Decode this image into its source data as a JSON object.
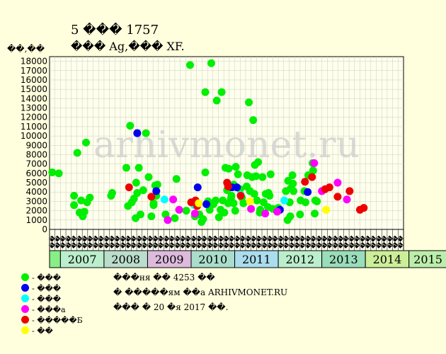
{
  "header": {
    "title": "5 ��� 1757",
    "subtitle": "��� Ag,��� XF.",
    "unit": "��,��"
  },
  "watermark": "arhivmonet.ru",
  "legend": [
    {
      "label": "- ���",
      "color": "#00ee00"
    },
    {
      "label": "- ���",
      "color": "#0000ee"
    },
    {
      "label": "- ���",
      "color": "#00ffff"
    },
    {
      "label": "- ���a",
      "color": "#ff00ff"
    },
    {
      "label": "- �����Б",
      "color": "#ee0000"
    },
    {
      "label": "- ��",
      "color": "#ffff00"
    }
  ],
  "info": [
    "���ня �� 4253 ��",
    "� �����ям ��a ARHIVMONET.RU",
    "��� � 20 �я 2017 ��."
  ],
  "chart_data": {
    "type": "scatter",
    "yticks": [
      0,
      1000,
      2000,
      3000,
      4000,
      5000,
      6000,
      7000,
      8000,
      9000,
      10000,
      11000,
      12000,
      13000,
      14000,
      15000,
      16000,
      17000,
      18000
    ],
    "ylim": [
      0,
      18500
    ],
    "grid": true,
    "periods": [
      "��",
      "��",
      "��",
      "��",
      "��",
      "��",
      "��",
      "��",
      "��",
      "��",
      "��",
      "��",
      "��",
      "��",
      "��",
      "��",
      "��",
      "��",
      "��",
      "��",
      "��",
      "��",
      "��",
      "��",
      "��",
      "��",
      "��",
      "��",
      "��",
      "��",
      "��",
      "��",
      "��",
      "��",
      "��",
      "��",
      "��",
      "��",
      "��",
      "��",
      "��",
      "��",
      "��",
      "��",
      "��",
      "��",
      "��",
      "��",
      "��",
      "��",
      "��",
      "��",
      "��",
      "��",
      "��",
      "��",
      "��",
      "��",
      "��",
      "��",
      "��",
      "��",
      "��",
      "��",
      "��"
    ],
    "years": [
      {
        "label": "",
        "span": 2,
        "color": "#88ee88"
      },
      {
        "label": "2007",
        "span": 8,
        "color": "#bbeecc"
      },
      {
        "label": "2008",
        "span": 8,
        "color": "#bbddcc"
      },
      {
        "label": "2009",
        "span": 8,
        "color": "#ddbbdd"
      },
      {
        "label": "2010",
        "span": 8,
        "color": "#aaddcc"
      },
      {
        "label": "2011",
        "span": 8,
        "color": "#aaddee"
      },
      {
        "label": "2012",
        "span": 8,
        "color": "#bbeecc"
      },
      {
        "label": "2013",
        "span": 8,
        "color": "#99ddbb"
      },
      {
        "label": "2014",
        "span": 8,
        "color": "#ccee99"
      },
      {
        "label": "2015",
        "span": 7,
        "color": "#bbeeaa"
      }
    ],
    "series": [
      {
        "color": "#00ee00",
        "points": [
          [
            0,
            6100
          ],
          [
            1.2,
            6000
          ],
          [
            4,
            3600
          ],
          [
            4,
            2600
          ],
          [
            4.6,
            8200
          ],
          [
            5,
            1800
          ],
          [
            5.3,
            3100
          ],
          [
            5.6,
            1400
          ],
          [
            5.9,
            1900
          ],
          [
            6.2,
            9300
          ],
          [
            6.4,
            2900
          ],
          [
            6.9,
            3400
          ],
          [
            10.8,
            3600
          ],
          [
            11,
            3900
          ],
          [
            13.6,
            6600
          ],
          [
            13.9,
            2500
          ],
          [
            14.3,
            11100
          ],
          [
            14.6,
            2900
          ],
          [
            15,
            3300
          ],
          [
            15.3,
            1200
          ],
          [
            15.4,
            5000
          ],
          [
            15.6,
            3900
          ],
          [
            15.9,
            6600
          ],
          [
            16.2,
            1600
          ],
          [
            16.7,
            4200
          ],
          [
            17.2,
            10300
          ],
          [
            17.7,
            5600
          ],
          [
            18.2,
            1400
          ],
          [
            18.6,
            2600
          ],
          [
            18.6,
            2800
          ],
          [
            18.9,
            4700
          ],
          [
            19.1,
            3600
          ],
          [
            19.3,
            4800
          ],
          [
            20.8,
            1600
          ],
          [
            22.5,
            1200
          ],
          [
            22.8,
            5400
          ],
          [
            24.6,
            2000
          ],
          [
            25.3,
            17600
          ],
          [
            26.2,
            1400
          ],
          [
            27,
            1600
          ],
          [
            27.4,
            800
          ],
          [
            27.7,
            1100
          ],
          [
            28.1,
            14700
          ],
          [
            28.1,
            6100
          ],
          [
            28.6,
            3000
          ],
          [
            28.9,
            2100
          ],
          [
            29.2,
            17800
          ],
          [
            29.5,
            2800
          ],
          [
            29.6,
            2700
          ],
          [
            30,
            3100
          ],
          [
            30.2,
            13800
          ],
          [
            30.6,
            1300
          ],
          [
            30.9,
            2100
          ],
          [
            31.1,
            14700
          ],
          [
            31.3,
            3100
          ],
          [
            31.6,
            1800
          ],
          [
            31.8,
            6600
          ],
          [
            32.1,
            4200
          ],
          [
            32.3,
            2800
          ],
          [
            32.4,
            6500
          ],
          [
            32.8,
            3300
          ],
          [
            32.9,
            3600
          ],
          [
            33.3,
            2800
          ],
          [
            33.3,
            4800
          ],
          [
            33.6,
            2000
          ],
          [
            33.7,
            6700
          ],
          [
            34.1,
            5900
          ],
          [
            34.5,
            4300
          ],
          [
            34.8,
            3400
          ],
          [
            35.1,
            2800
          ],
          [
            35.7,
            4600
          ],
          [
            35.8,
            5800
          ],
          [
            36.1,
            13600
          ],
          [
            36.3,
            4100
          ],
          [
            36.7,
            5600
          ],
          [
            36.9,
            11700
          ],
          [
            37.1,
            3800
          ],
          [
            37.2,
            6900
          ],
          [
            37.4,
            5700
          ],
          [
            37.6,
            3100
          ],
          [
            37.8,
            7200
          ],
          [
            38.1,
            1800
          ],
          [
            38.2,
            2100
          ],
          [
            38.6,
            5600
          ],
          [
            38.8,
            2900
          ],
          [
            39.2,
            3800
          ],
          [
            39.6,
            2400
          ],
          [
            39.7,
            3900
          ],
          [
            39.9,
            3600
          ],
          [
            40.1,
            5900
          ],
          [
            40.5,
            2200
          ],
          [
            41.5,
            2300
          ],
          [
            42.9,
            4100
          ],
          [
            43.2,
            1000
          ],
          [
            43.3,
            5200
          ],
          [
            43.6,
            2900
          ],
          [
            43.7,
            1400
          ],
          [
            43.8,
            4400
          ],
          [
            44.1,
            5800
          ],
          [
            44.2,
            4900
          ],
          [
            44.3,
            4100
          ],
          [
            45.5,
            1600
          ],
          [
            45.6,
            3100
          ],
          [
            46.3,
            4100
          ],
          [
            46.5,
            2900
          ],
          [
            47,
            5800
          ],
          [
            47.8,
            7100
          ],
          [
            47.9,
            6300
          ],
          [
            48.2,
            1700
          ],
          [
            48.3,
            3100
          ],
          [
            48.6,
            3000
          ]
        ]
      },
      {
        "color": "#0000ee",
        "points": [
          [
            15.6,
            10300
          ],
          [
            19.1,
            4100
          ],
          [
            26.7,
            4500
          ],
          [
            28.3,
            2700
          ],
          [
            33,
            4500
          ],
          [
            33.9,
            4500
          ],
          [
            41.8,
            2100
          ],
          [
            46.9,
            4000
          ]
        ]
      },
      {
        "color": "#00ffff",
        "points": [
          [
            20.6,
            3200
          ],
          [
            26.1,
            2600
          ],
          [
            34.6,
            3700
          ],
          [
            42.6,
            3100
          ]
        ]
      },
      {
        "color": "#ff00ff",
        "points": [
          [
            21.2,
            1000
          ],
          [
            22.2,
            3200
          ],
          [
            23.3,
            2100
          ],
          [
            26.2,
            1700
          ],
          [
            36.5,
            2200
          ],
          [
            39.1,
            1700
          ],
          [
            41.3,
            1900
          ],
          [
            48.1,
            7100
          ],
          [
            49.5,
            4100
          ],
          [
            52.4,
            5000
          ],
          [
            54.1,
            3200
          ]
        ]
      },
      {
        "color": "#ee0000",
        "points": [
          [
            14.1,
            4500
          ],
          [
            18.2,
            3500
          ],
          [
            25.5,
            2900
          ],
          [
            26.3,
            3100
          ],
          [
            26.6,
            2500
          ],
          [
            32.1,
            5000
          ],
          [
            32.3,
            4600
          ],
          [
            34.6,
            3600
          ],
          [
            46.4,
            5100
          ],
          [
            47.7,
            5600
          ],
          [
            50.1,
            4300
          ],
          [
            50.9,
            4500
          ],
          [
            52.4,
            3500
          ],
          [
            54.6,
            4100
          ],
          [
            56.5,
            2100
          ],
          [
            57.2,
            2300
          ]
        ]
      },
      {
        "color": "#ffff00",
        "points": [
          [
            26.9,
            2800
          ],
          [
            36.3,
            3000
          ],
          [
            50.3,
            2100
          ]
        ]
      }
    ]
  }
}
